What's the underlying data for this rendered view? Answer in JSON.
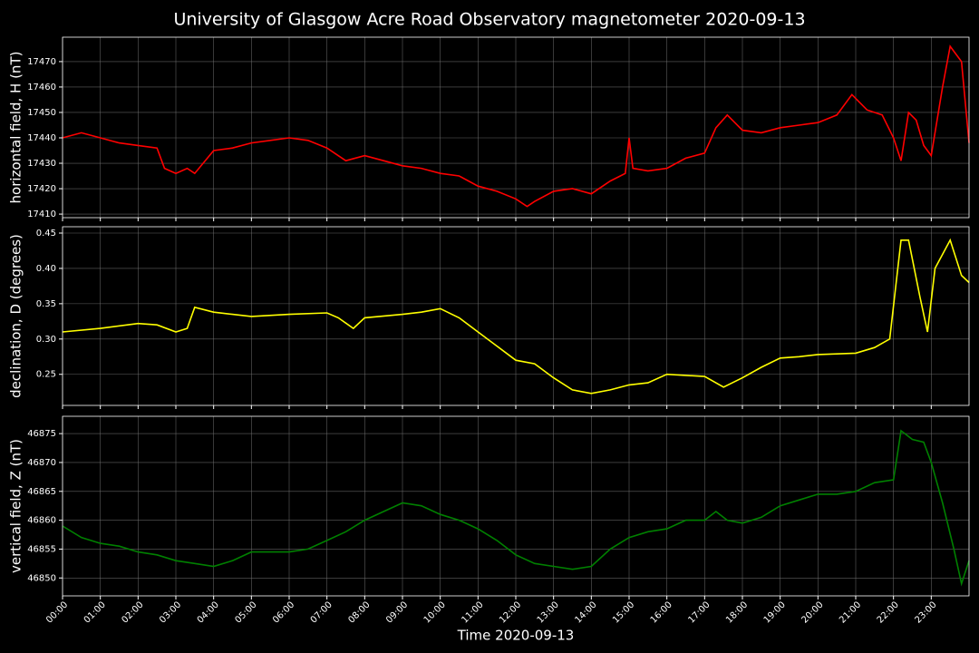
{
  "chart_data": [
    {
      "type": "line",
      "title": "University of Glasgow Acre Road Observatory magnetometer 2020-09-13",
      "y_label": "horizontal field, H (nT)",
      "color": "#ff0000",
      "grid": true,
      "x": [
        0,
        0.5,
        1,
        1.5,
        2,
        2.5,
        2.7,
        3,
        3.3,
        3.5,
        4,
        4.5,
        5,
        5.5,
        6,
        6.5,
        7,
        7.5,
        8,
        8.5,
        9,
        9.5,
        10,
        10.5,
        11,
        11.5,
        12,
        12.3,
        12.5,
        13,
        13.5,
        14,
        14.5,
        14.9,
        15,
        15.1,
        15.5,
        16,
        16.5,
        17,
        17.3,
        17.6,
        18,
        18.5,
        19,
        19.5,
        20,
        20.5,
        20.9,
        21.3,
        21.7,
        22,
        22.2,
        22.4,
        22.6,
        22.8,
        23,
        23.3,
        23.5,
        23.8,
        24
      ],
      "values": [
        17440,
        17442,
        17440,
        17438,
        17437,
        17436,
        17428,
        17426,
        17428,
        17426,
        17435,
        17436,
        17438,
        17439,
        17440,
        17439,
        17436,
        17431,
        17433,
        17431,
        17429,
        17428,
        17426,
        17425,
        17421,
        17419,
        17416,
        17413,
        17415,
        17419,
        17420,
        17418,
        17423,
        17426,
        17440,
        17428,
        17427,
        17428,
        17432,
        17434,
        17444,
        17449,
        17443,
        17442,
        17444,
        17445,
        17446,
        17449,
        17457,
        17451,
        17449,
        17440,
        17431,
        17450,
        17447,
        17437,
        17433,
        17460,
        17476,
        17470,
        17438
      ],
      "xlim": [
        0,
        24
      ],
      "xticks": [
        0,
        1,
        2,
        3,
        4,
        5,
        6,
        7,
        8,
        9,
        10,
        11,
        12,
        13,
        14,
        15,
        16,
        17,
        18,
        19,
        20,
        21,
        22,
        23
      ],
      "ylim": [
        17408.6,
        17479.6
      ],
      "yticks": [
        17410,
        17420,
        17430,
        17440,
        17450,
        17460,
        17470
      ]
    },
    {
      "type": "line",
      "y_label": "declination, D (degrees)",
      "color": "#ffff00",
      "grid": true,
      "x": [
        0,
        1,
        2,
        2.5,
        3,
        3.3,
        3.5,
        4,
        4.5,
        5,
        6,
        7,
        7.3,
        7.7,
        8,
        9,
        9.5,
        10,
        10.5,
        11,
        11.5,
        12,
        12.5,
        13,
        13.5,
        14,
        14.5,
        15,
        15.5,
        16,
        17,
        17.5,
        18,
        18.5,
        19,
        19.5,
        20,
        21,
        21.5,
        21.9,
        22.2,
        22.4,
        22.7,
        22.9,
        23.1,
        23.5,
        23.8,
        24
      ],
      "values": [
        0.31,
        0.315,
        0.322,
        0.32,
        0.31,
        0.315,
        0.345,
        0.338,
        0.335,
        0.332,
        0.335,
        0.337,
        0.33,
        0.315,
        0.33,
        0.335,
        0.338,
        0.343,
        0.33,
        0.31,
        0.29,
        0.27,
        0.265,
        0.245,
        0.228,
        0.223,
        0.228,
        0.235,
        0.238,
        0.25,
        0.247,
        0.232,
        0.245,
        0.26,
        0.273,
        0.275,
        0.278,
        0.28,
        0.288,
        0.3,
        0.44,
        0.44,
        0.36,
        0.31,
        0.4,
        0.44,
        0.39,
        0.38
      ],
      "xlim": [
        0,
        24
      ],
      "xticks": [
        0,
        1,
        2,
        3,
        4,
        5,
        6,
        7,
        8,
        9,
        10,
        11,
        12,
        13,
        14,
        15,
        16,
        17,
        18,
        19,
        20,
        21,
        22,
        23
      ],
      "ylim": [
        0.206,
        0.459
      ],
      "yticks": [
        0.25,
        {
          "value": 0.3,
          "label": "0.30"
        },
        0.35,
        {
          "value": 0.4,
          "label": "0.40"
        },
        0.45
      ]
    },
    {
      "type": "line",
      "y_label": "vertical field, Z (nT)",
      "x_label": "Time 2020-09-13",
      "color": "#008000",
      "grid": true,
      "x": [
        0,
        0.5,
        1,
        1.5,
        2,
        2.5,
        3,
        3.5,
        4,
        4.5,
        5,
        5.5,
        6,
        6.5,
        7,
        7.5,
        8,
        8.5,
        9,
        9.5,
        10,
        10.5,
        11,
        11.5,
        12,
        12.5,
        13,
        13.5,
        14,
        14.5,
        15,
        15.5,
        16,
        16.5,
        17,
        17.3,
        17.6,
        18,
        18.5,
        19,
        19.5,
        20,
        20.5,
        21,
        21.5,
        22,
        22.2,
        22.5,
        22.8,
        23,
        23.3,
        23.6,
        23.8,
        24
      ],
      "values": [
        46859,
        46857,
        46856,
        46855.5,
        46854.5,
        46854,
        46853,
        46852.5,
        46852,
        46853,
        46854.5,
        46854.5,
        46854.5,
        46855,
        46856.5,
        46858,
        46860,
        46861.5,
        46863,
        46862.5,
        46861,
        46860,
        46858.5,
        46856.5,
        46854,
        46852.5,
        46852,
        46851.5,
        46852,
        46855,
        46857,
        46858,
        46858.5,
        46860,
        46860,
        46861.5,
        46860,
        46859.5,
        46860.5,
        46862.5,
        46863.5,
        46864.5,
        46864.5,
        46865,
        46866.5,
        46867,
        46875.5,
        46874,
        46873.5,
        46870,
        46863,
        46855,
        46849,
        46853
      ],
      "xlim": [
        0,
        24
      ],
      "xticks": [
        {
          "value": 0,
          "label": "00:00"
        },
        {
          "value": 1,
          "label": "01:00"
        },
        {
          "value": 2,
          "label": "02:00"
        },
        {
          "value": 3,
          "label": "03:00"
        },
        {
          "value": 4,
          "label": "04:00"
        },
        {
          "value": 5,
          "label": "05:00"
        },
        {
          "value": 6,
          "label": "06:00"
        },
        {
          "value": 7,
          "label": "07:00"
        },
        {
          "value": 8,
          "label": "08:00"
        },
        {
          "value": 9,
          "label": "09:00"
        },
        {
          "value": 10,
          "label": "10:00"
        },
        {
          "value": 11,
          "label": "11:00"
        },
        {
          "value": 12,
          "label": "12:00"
        },
        {
          "value": 13,
          "label": "13:00"
        },
        {
          "value": 14,
          "label": "14:00"
        },
        {
          "value": 15,
          "label": "15:00"
        },
        {
          "value": 16,
          "label": "16:00"
        },
        {
          "value": 17,
          "label": "17:00"
        },
        {
          "value": 18,
          "label": "18:00"
        },
        {
          "value": 19,
          "label": "19:00"
        },
        {
          "value": 20,
          "label": "20:00"
        },
        {
          "value": 21,
          "label": "21:00"
        },
        {
          "value": 22,
          "label": "22:00"
        },
        {
          "value": 23,
          "label": "23:00"
        }
      ],
      "ylim": [
        46846.9,
        46878.0
      ],
      "yticks": [
        46850,
        46855,
        46860,
        46865,
        46870,
        46875
      ]
    }
  ]
}
